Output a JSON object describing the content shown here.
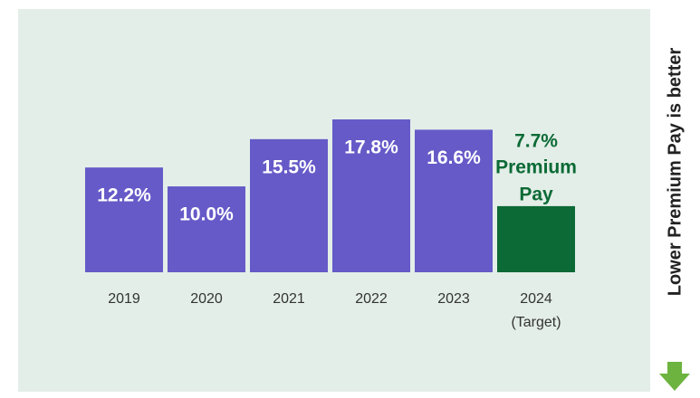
{
  "chart_data": {
    "type": "bar",
    "categories": [
      "2019",
      "2020",
      "2021",
      "2022",
      "2023",
      "2024"
    ],
    "category_note": "(Target)",
    "values": [
      12.2,
      10.0,
      15.5,
      17.8,
      16.6,
      7.7
    ],
    "value_labels": [
      "12.2%",
      "10.0%",
      "15.5%",
      "17.8%",
      "16.6%",
      "7.7%"
    ],
    "colors": [
      "#665ac8",
      "#665ac8",
      "#665ac8",
      "#665ac8",
      "#665ac8",
      "#0b6a35"
    ],
    "target_annotation": [
      "Premium",
      "Pay"
    ],
    "side_label": "Lower Premium Pay is better"
  }
}
